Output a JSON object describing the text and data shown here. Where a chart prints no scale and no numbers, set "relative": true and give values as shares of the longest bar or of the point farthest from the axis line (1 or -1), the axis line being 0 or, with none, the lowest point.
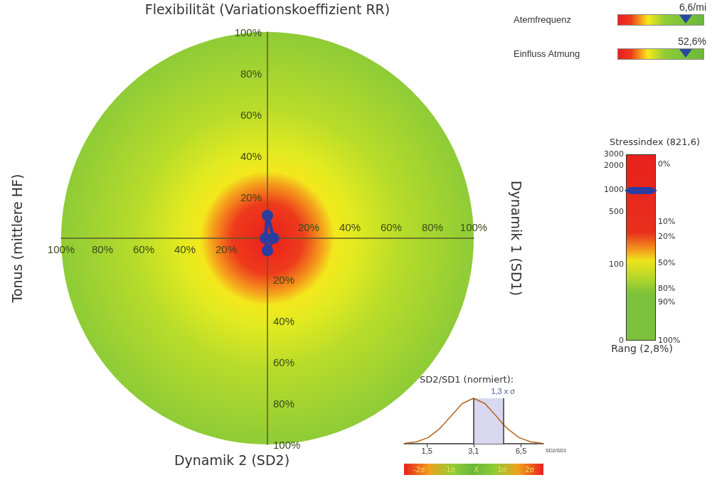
{
  "chart_data": [
    {
      "type": "radar",
      "categories": [
        "Flexibilität (Variationskoeffizient RR)",
        "Dynamik 1 (SD1)",
        "Dynamik 2 (SD2)",
        "Tonus (mittlere HF)"
      ],
      "series": [
        {
          "color": "#2b3ea0",
          "values": [
            11,
            3,
            6,
            1
          ]
        }
      ],
      "ylim": [
        0,
        100
      ],
      "yticks": [
        {
          "value": 20,
          "label": "20%"
        },
        {
          "value": 40,
          "label": "40%"
        },
        {
          "value": 60,
          "label": "60%"
        },
        {
          "value": 80,
          "label": "80%"
        },
        {
          "value": 100,
          "label": "100%"
        }
      ],
      "marker": "circle"
    },
    {
      "type": "other",
      "title": "Atemfrequenz",
      "annotations": [
        "6,6/mi"
      ]
    },
    {
      "type": "other",
      "title": "Einfluss Atmung",
      "annotations": [
        "52,6%"
      ]
    },
    {
      "type": "other",
      "title": "Stressindex (821,6)",
      "xlabel": "Rang (2,8%)",
      "annotations": [
        "3000",
        "2000",
        "1000",
        "500",
        "100",
        "0",
        "0%",
        "10%",
        "20%",
        "50%",
        "80%",
        "90%",
        "100%"
      ]
    },
    {
      "type": "line",
      "title": "SD2/SD1 (normiert):",
      "xlabel": "SD2/SD1",
      "relative": true,
      "log": "x",
      "series": [
        {
          "color": "#b5651d",
          "x": [
            1.07,
            1.28,
            1.53,
            1.82,
            2.18,
            2.6,
            3.1,
            3.7,
            4.42,
            4.91,
            5.28,
            6.3,
            7.52,
            8.98
          ],
          "values": [
            0.011,
            0.044,
            0.135,
            0.325,
            0.607,
            0.882,
            1,
            0.882,
            0.607,
            0.43,
            0.325,
            0.135,
            0.044,
            0.011
          ]
        }
      ],
      "xlim": [
        1.05,
        9.2
      ],
      "xticks": [
        {
          "value": 1.5,
          "label": "1,5"
        },
        {
          "value": 3.1,
          "label": "3,1"
        },
        {
          "value": 6.5,
          "label": "6,5"
        }
      ],
      "ref_lines": [
        {
          "axis": "x",
          "value": 3.1,
          "color": "#333333"
        },
        {
          "axis": "x",
          "value": 4.91,
          "label": "1,3 x σ",
          "color": "#333333"
        }
      ],
      "bands": [
        {
          "axis": "x",
          "from": 3.1,
          "to": 4.91,
          "color": "#d8d8f0"
        }
      ],
      "annotations": [
        "-2σ",
        "-1σ",
        "X",
        "1σ",
        "2σ"
      ],
      "marker": "none"
    }
  ]
}
